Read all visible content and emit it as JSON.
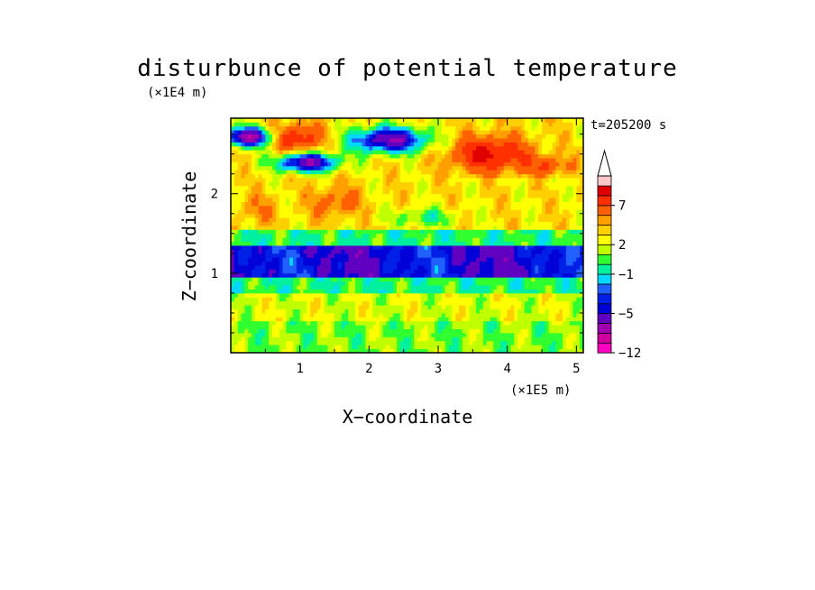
{
  "chart_data": {
    "type": "heatmap",
    "title": "disturbunce of potential temperature",
    "z_unit": "(×1E4 m)",
    "x_unit": "(×1E5 m)",
    "xlabel": "X−coordinate",
    "ylabel": "Z−coordinate",
    "time_label": "t=205200 s",
    "x_range": [
      0,
      5.1
    ],
    "z_range": [
      0,
      2.95
    ],
    "x_ticks": [
      {
        "value": 1,
        "label": "1"
      },
      {
        "value": 2,
        "label": "2"
      },
      {
        "value": 3,
        "label": "3"
      },
      {
        "value": 4,
        "label": "4"
      },
      {
        "value": 5,
        "label": "5"
      }
    ],
    "z_ticks": [
      {
        "value": 1,
        "label": "1"
      },
      {
        "value": 2,
        "label": "2"
      }
    ],
    "colorbar": {
      "levels": [
        -12,
        -11,
        -9,
        -7,
        -5,
        -4,
        -3,
        -2,
        -1,
        0,
        1,
        2,
        3,
        4,
        5,
        7,
        9,
        11
      ],
      "labels": [
        {
          "index": 0,
          "label": "−12"
        },
        {
          "index": 4,
          "label": "−5"
        },
        {
          "index": 8,
          "label": "−1"
        },
        {
          "index": 11,
          "label": "2"
        },
        {
          "index": 15,
          "label": "7"
        }
      ],
      "colors": [
        "#ff00c0",
        "#d000a0",
        "#a000b0",
        "#6000c0",
        "#0000d8",
        "#0020e8",
        "#2060ff",
        "#00d8ff",
        "#00f0a0",
        "#30ff30",
        "#c0ff00",
        "#ffff00",
        "#ffd000",
        "#ffa000",
        "#ff6000",
        "#ff3000",
        "#e00000",
        "#ffc8c8"
      ],
      "extend_top": true
    },
    "field_bands": [
      {
        "z": [
          0.0,
          0.38
        ],
        "description": "yellow/green",
        "value": 1
      },
      {
        "z": [
          0.38,
          0.75
        ],
        "description": "yellow/orange",
        "value": 2
      },
      {
        "z": [
          0.75,
          0.95
        ],
        "description": "green/cyan",
        "value": 0
      },
      {
        "z": [
          0.95,
          1.35
        ],
        "description": "blue/cyan",
        "value": -4
      },
      {
        "z": [
          1.35,
          1.55
        ],
        "description": "green",
        "value": 0
      },
      {
        "z": [
          1.55,
          2.2
        ],
        "description": "yellow/orange",
        "value": 3
      },
      {
        "z": [
          2.2,
          2.95
        ],
        "description": "mixed orange/blue",
        "value": 3
      }
    ]
  }
}
